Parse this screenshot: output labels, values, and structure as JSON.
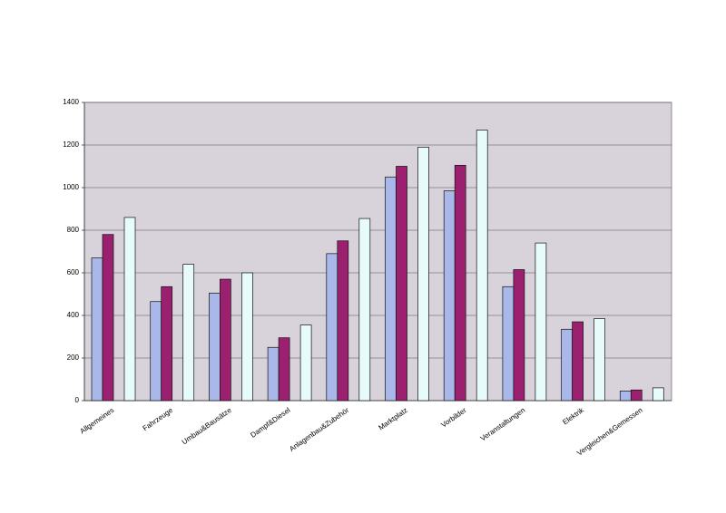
{
  "chart_data": {
    "type": "bar",
    "categories": [
      "Allgemeines",
      "Fahrzeuge",
      "Umbau&Bausätze",
      "Dampf&Diesel",
      "Anlagenbau&Zubehör",
      "Marktplatz",
      "Vorbilder",
      "Veranstaltungen",
      "Elektrik",
      "Vergleichen&Gemessen"
    ],
    "series": [
      {
        "color": "#a9b8e8",
        "values": [
          670,
          465,
          505,
          250,
          690,
          1050,
          985,
          535,
          335,
          45
        ]
      },
      {
        "color": "#9b2070",
        "values": [
          780,
          535,
          570,
          295,
          750,
          1100,
          1105,
          615,
          370,
          50
        ]
      },
      {
        "color": "#e8fbfb",
        "values": [
          860,
          640,
          600,
          355,
          855,
          1190,
          1270,
          740,
          385,
          60
        ]
      }
    ],
    "ylim": [
      0,
      1400
    ],
    "yticks": [
      0,
      200,
      400,
      600,
      800,
      1000,
      1200,
      1400
    ],
    "grid": true
  }
}
